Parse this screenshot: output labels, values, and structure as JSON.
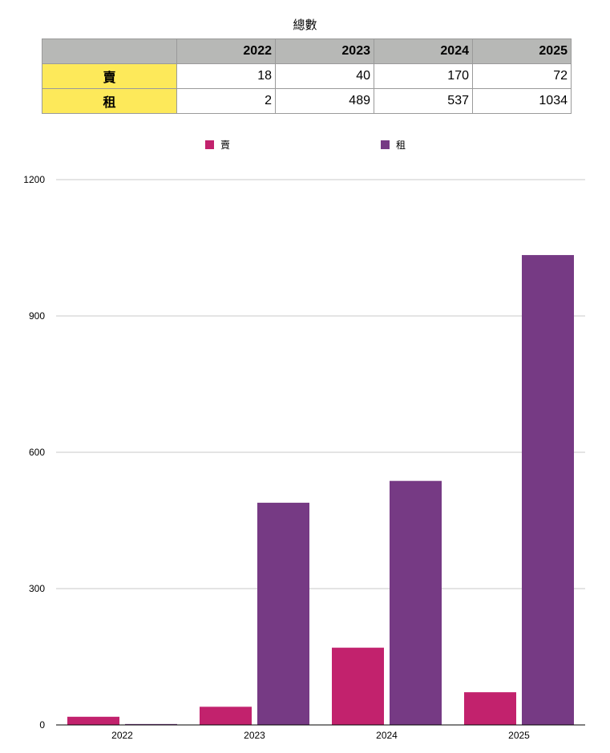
{
  "title": "總數",
  "table": {
    "columns": [
      "2022",
      "2023",
      "2024",
      "2025"
    ],
    "rows": [
      {
        "label": "賣",
        "values": [
          "18",
          "40",
          "170",
          "72"
        ]
      },
      {
        "label": "租",
        "values": [
          "2",
          "489",
          "537",
          "1034"
        ]
      }
    ]
  },
  "legend": {
    "items": [
      {
        "label": "賣",
        "color": "#c2226d"
      },
      {
        "label": "租",
        "color": "#763a84"
      }
    ]
  },
  "chart_data": {
    "type": "bar",
    "title": "總數",
    "categories": [
      "2022",
      "2023",
      "2024",
      "2025"
    ],
    "series": [
      {
        "name": "賣",
        "color": "#c2226d",
        "values": [
          18,
          40,
          170,
          72
        ]
      },
      {
        "name": "租",
        "color": "#763a84",
        "values": [
          2,
          489,
          537,
          1034
        ]
      }
    ],
    "ylim": [
      0,
      1200
    ],
    "yticks": [
      0,
      300,
      600,
      900,
      1200
    ],
    "grid": true,
    "legend_position": "top"
  }
}
